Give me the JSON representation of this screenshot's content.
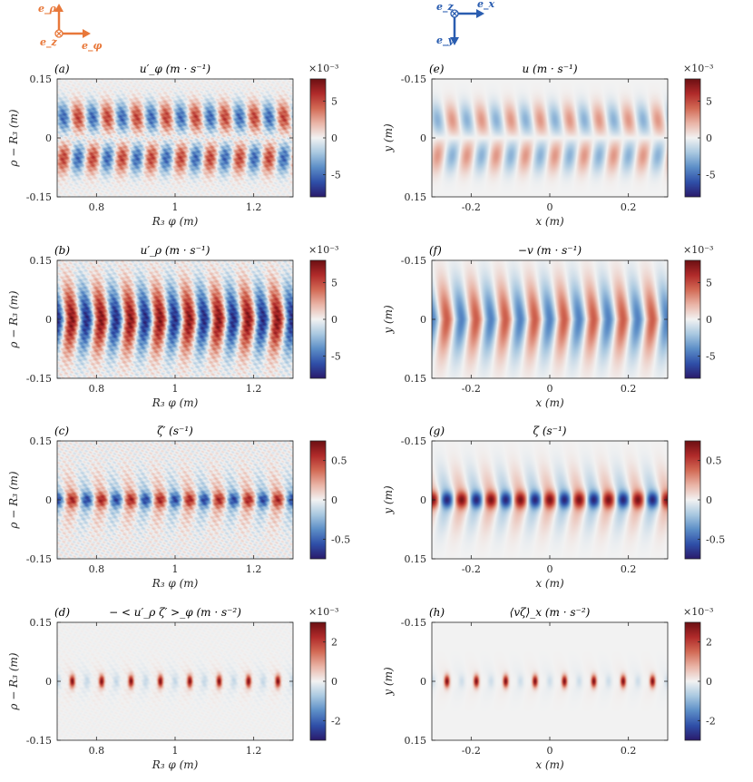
{
  "coord_icons": {
    "left": {
      "color": "#e8783a",
      "up": "e_ρ",
      "center": "e_z",
      "right": "e_φ"
    },
    "right": {
      "color": "#2a5db0",
      "center": "e_z",
      "right": "e_x",
      "down": "e_y"
    }
  },
  "colormap": [
    "#2a1a6b",
    "#2f4fa8",
    "#5c8ec7",
    "#a9c8e0",
    "#f2f2f2",
    "#e9b4a6",
    "#d26a55",
    "#b02a2a",
    "#6b0f12"
  ],
  "chart_data": [
    {
      "id": "a",
      "type": "heatmap",
      "panel_label": "(a)",
      "title": "u′_φ (m · s⁻¹)",
      "xlabel": "R₃ φ (m)",
      "ylabel": "ρ − R₃ (m)",
      "xticks": [
        "0.8",
        "1",
        "1.2"
      ],
      "yticks": [
        "0.15",
        "0",
        "-0.15"
      ],
      "colorbar_ticks": [
        "5",
        "0",
        "-5"
      ],
      "colorbar_exponent": "×10⁻³",
      "xlim": [
        0.7,
        1.3
      ],
      "ylim": [
        -0.15,
        0.15
      ],
      "clim": [
        -0.008,
        0.008
      ],
      "pattern": "uphi_lab",
      "x_unit": "R3phi"
    },
    {
      "id": "e",
      "type": "heatmap",
      "panel_label": "(e)",
      "title": "u (m · s⁻¹)",
      "xlabel": "x (m)",
      "ylabel": "y (m)",
      "xticks": [
        "-0.2",
        "0",
        "0.2"
      ],
      "yticks": [
        "-0.15",
        "0",
        "0.15"
      ],
      "colorbar_ticks": [
        "5",
        "0",
        "-5"
      ],
      "colorbar_exponent": "×10⁻³",
      "xlim": [
        -0.3,
        0.3
      ],
      "ylim": [
        -0.15,
        0.15
      ],
      "clim": [
        -0.008,
        0.008
      ],
      "pattern": "u_model",
      "x_unit": "x"
    },
    {
      "id": "b",
      "type": "heatmap",
      "panel_label": "(b)",
      "title": "u′_ρ (m · s⁻¹)",
      "xlabel": "R₃ φ (m)",
      "ylabel": "ρ − R₃ (m)",
      "xticks": [
        "0.8",
        "1",
        "1.2"
      ],
      "yticks": [
        "0.15",
        "0",
        "-0.15"
      ],
      "colorbar_ticks": [
        "5",
        "0",
        "-5"
      ],
      "colorbar_exponent": "×10⁻³",
      "xlim": [
        0.7,
        1.3
      ],
      "ylim": [
        -0.15,
        0.15
      ],
      "clim": [
        -0.008,
        0.008
      ],
      "pattern": "urho_lab",
      "x_unit": "R3phi"
    },
    {
      "id": "f",
      "type": "heatmap",
      "panel_label": "(f)",
      "title": "−v (m · s⁻¹)",
      "xlabel": "x (m)",
      "ylabel": "y (m)",
      "xticks": [
        "-0.2",
        "0",
        "0.2"
      ],
      "yticks": [
        "-0.15",
        "0",
        "0.15"
      ],
      "colorbar_ticks": [
        "5",
        "0",
        "-5"
      ],
      "colorbar_exponent": "×10⁻³",
      "xlim": [
        -0.3,
        0.3
      ],
      "ylim": [
        -0.15,
        0.15
      ],
      "clim": [
        -0.008,
        0.008
      ],
      "pattern": "v_model",
      "x_unit": "x"
    },
    {
      "id": "c",
      "type": "heatmap",
      "panel_label": "(c)",
      "title": "ζ′ (s⁻¹)",
      "xlabel": "R₃ φ (m)",
      "ylabel": "ρ − R₃ (m)",
      "xticks": [
        "0.8",
        "1",
        "1.2"
      ],
      "yticks": [
        "0.15",
        "0",
        "-0.15"
      ],
      "colorbar_ticks": [
        "0.5",
        "0",
        "-0.5"
      ],
      "colorbar_exponent": "",
      "xlim": [
        0.7,
        1.3
      ],
      "ylim": [
        -0.15,
        0.15
      ],
      "clim": [
        -0.75,
        0.75
      ],
      "pattern": "zeta_lab",
      "x_unit": "R3phi"
    },
    {
      "id": "g",
      "type": "heatmap",
      "panel_label": "(g)",
      "title": "ζ (s⁻¹)",
      "xlabel": "x (m)",
      "ylabel": "y (m)",
      "xticks": [
        "-0.2",
        "0",
        "0.2"
      ],
      "yticks": [
        "-0.15",
        "0",
        "0.15"
      ],
      "colorbar_ticks": [
        "0.5",
        "0",
        "-0.5"
      ],
      "colorbar_exponent": "",
      "xlim": [
        -0.3,
        0.3
      ],
      "ylim": [
        -0.15,
        0.15
      ],
      "clim": [
        -0.75,
        0.75
      ],
      "pattern": "zeta_model",
      "x_unit": "x"
    },
    {
      "id": "d",
      "type": "heatmap",
      "panel_label": "(d)",
      "title": "− < u′_ρ ζ′ >_φ (m · s⁻²)",
      "xlabel": "R₃ φ (m)",
      "ylabel": "ρ − R₃ (m)",
      "xticks": [
        "0.8",
        "1",
        "1.2"
      ],
      "yticks": [
        "0.15",
        "0",
        "-0.15"
      ],
      "colorbar_ticks": [
        "2",
        "0",
        "-2"
      ],
      "colorbar_exponent": "×10⁻³",
      "xlim": [
        0.7,
        1.3
      ],
      "ylim": [
        -0.15,
        0.15
      ],
      "clim": [
        -0.003,
        0.003
      ],
      "pattern": "flux_lab",
      "x_unit": "R3phi"
    },
    {
      "id": "h",
      "type": "heatmap",
      "panel_label": "(h)",
      "title": "⟨vζ⟩_x (m · s⁻²)",
      "xlabel": "x (m)",
      "ylabel": "y (m)",
      "xticks": [
        "-0.2",
        "0",
        "0.2"
      ],
      "yticks": [
        "-0.15",
        "0",
        "0.15"
      ],
      "colorbar_ticks": [
        "2",
        "0",
        "-2"
      ],
      "colorbar_exponent": "×10⁻³",
      "xlim": [
        -0.3,
        0.3
      ],
      "ylim": [
        -0.15,
        0.15
      ],
      "clim": [
        -0.003,
        0.003
      ],
      "pattern": "flux_model",
      "x_unit": "x"
    }
  ]
}
